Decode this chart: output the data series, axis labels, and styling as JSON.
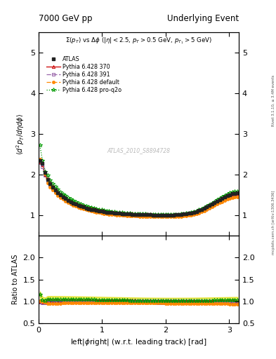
{
  "title_left": "7000 GeV pp",
  "title_right": "Underlying Event",
  "annotation": "ATLAS_2010_S8894728",
  "subtitle": "$\\Sigma(p_T)$ vs $\\Delta\\phi$ ($|\\eta| < 2.5$, $p_T > 0.5$ GeV, $p_{T_1} > 5$ GeV)",
  "right_label": "Rivet 3.1.10, ≥ 3.4M events",
  "right_label2": "mcplots.cern.ch [arXiv:1306.3436]",
  "ylabel_main": "$\\langle d^2 p_T/d\\eta d\\phi \\rangle$",
  "ylabel_ratio": "Ratio to ATLAS",
  "xlabel": "left|$\\phi$right| (w.r.t. leading track) [rad]",
  "ylim_main": [
    0.5,
    5.5
  ],
  "ylim_ratio": [
    0.5,
    2.5
  ],
  "yticks_main": [
    1,
    2,
    3,
    4,
    5
  ],
  "yticks_ratio": [
    0.5,
    1.0,
    1.5,
    2.0
  ],
  "xlim": [
    0,
    3.15
  ],
  "xticks": [
    0,
    1,
    2,
    3
  ],
  "colors": {
    "atlas": "#222222",
    "p370": "#cc0000",
    "p391": "#9966aa",
    "pdefault": "#ff8800",
    "pproq2o": "#009900"
  },
  "band_color_atlas": "#bbbbbb",
  "band_color_yellow": "#dddd00"
}
